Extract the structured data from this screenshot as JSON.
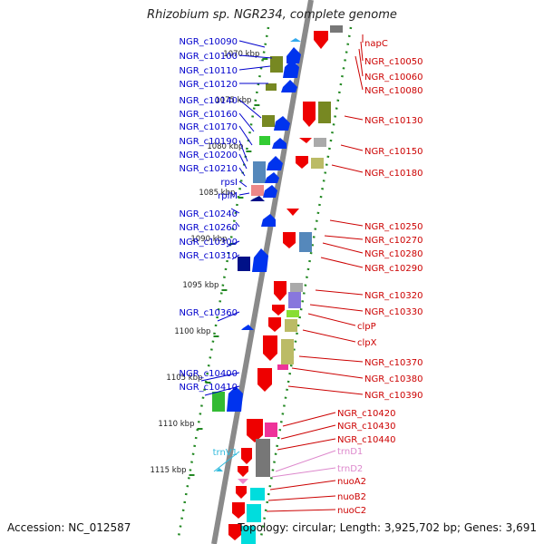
{
  "title": "Rhizobium sp. NGR234, complete genome",
  "footer": {
    "accession": "Accession: NC_012587",
    "summary": "Topology: circular; Length: 3,925,702 bp; Genes: 3,691"
  },
  "colors": {
    "left_label": "#0000cc",
    "right_label": "#cc0000",
    "trna_label": "#33bbdd",
    "trna_right_label": "#dd88cc",
    "track_dots": "#228822",
    "spine": "#8a8a8a"
  },
  "scale_ticks": [
    {
      "label": "1070 kbp",
      "kbp": 1070
    },
    {
      "label": "1075 kbp",
      "kbp": 1075
    },
    {
      "label": "1080 kbp",
      "kbp": 1080
    },
    {
      "label": "1085 kbp",
      "kbp": 1085
    },
    {
      "label": "1090 kbp",
      "kbp": 1090
    },
    {
      "label": "1095 kbp",
      "kbp": 1095
    },
    {
      "label": "1100 kbp",
      "kbp": 1100
    },
    {
      "label": "1105 kbp",
      "kbp": 1105
    },
    {
      "label": "1110 kbp",
      "kbp": 1110
    },
    {
      "label": "1115 kbp",
      "kbp": 1115
    }
  ],
  "left_labels": [
    {
      "text": "NGR_c10090",
      "type": "gene"
    },
    {
      "text": "NGR_c10100",
      "type": "gene"
    },
    {
      "text": "NGR_c10110",
      "type": "gene"
    },
    {
      "text": "NGR_c10120",
      "type": "gene"
    },
    {
      "text": "NGR_c10140",
      "type": "gene"
    },
    {
      "text": "NGR_c10160",
      "type": "gene"
    },
    {
      "text": "NGR_c10170",
      "type": "gene"
    },
    {
      "text": "NGR_c10190",
      "type": "gene"
    },
    {
      "text": "NGR_c10200",
      "type": "gene"
    },
    {
      "text": "NGR_c10210",
      "type": "gene"
    },
    {
      "text": "rpsI",
      "type": "gene"
    },
    {
      "text": "rplM",
      "type": "gene"
    },
    {
      "text": "NGR_c10240",
      "type": "gene"
    },
    {
      "text": "NGR_c10260",
      "type": "gene"
    },
    {
      "text": "NGR_c10300",
      "type": "gene"
    },
    {
      "text": "NGR_c10310",
      "type": "gene"
    },
    {
      "text": "NGR_c10360",
      "type": "gene"
    },
    {
      "text": "NGR_c10400",
      "type": "gene"
    },
    {
      "text": "NGR_c10410",
      "type": "gene"
    },
    {
      "text": "trnV1",
      "type": "trna"
    }
  ],
  "right_labels": [
    {
      "text": "napC",
      "type": "gene"
    },
    {
      "text": "NGR_c10050",
      "type": "gene"
    },
    {
      "text": "NGR_c10060",
      "type": "gene"
    },
    {
      "text": "NGR_c10080",
      "type": "gene"
    },
    {
      "text": "NGR_c10130",
      "type": "gene"
    },
    {
      "text": "NGR_c10150",
      "type": "gene"
    },
    {
      "text": "NGR_c10180",
      "type": "gene"
    },
    {
      "text": "NGR_c10250",
      "type": "gene"
    },
    {
      "text": "NGR_c10270",
      "type": "gene"
    },
    {
      "text": "NGR_c10280",
      "type": "gene"
    },
    {
      "text": "NGR_c10290",
      "type": "gene"
    },
    {
      "text": "NGR_c10320",
      "type": "gene"
    },
    {
      "text": "NGR_c10330",
      "type": "gene"
    },
    {
      "text": "clpP",
      "type": "gene"
    },
    {
      "text": "clpX",
      "type": "gene"
    },
    {
      "text": "NGR_c10370",
      "type": "gene"
    },
    {
      "text": "NGR_c10380",
      "type": "gene"
    },
    {
      "text": "NGR_c10390",
      "type": "gene"
    },
    {
      "text": "NGR_c10420",
      "type": "gene"
    },
    {
      "text": "NGR_c10430",
      "type": "gene"
    },
    {
      "text": "NGR_c10440",
      "type": "gene"
    },
    {
      "text": "trnD1",
      "type": "trna"
    },
    {
      "text": "trnD2",
      "type": "trna"
    },
    {
      "text": "nuoA2",
      "type": "gene"
    },
    {
      "text": "nuoB2",
      "type": "gene"
    },
    {
      "text": "nuoC2",
      "type": "gene"
    }
  ]
}
